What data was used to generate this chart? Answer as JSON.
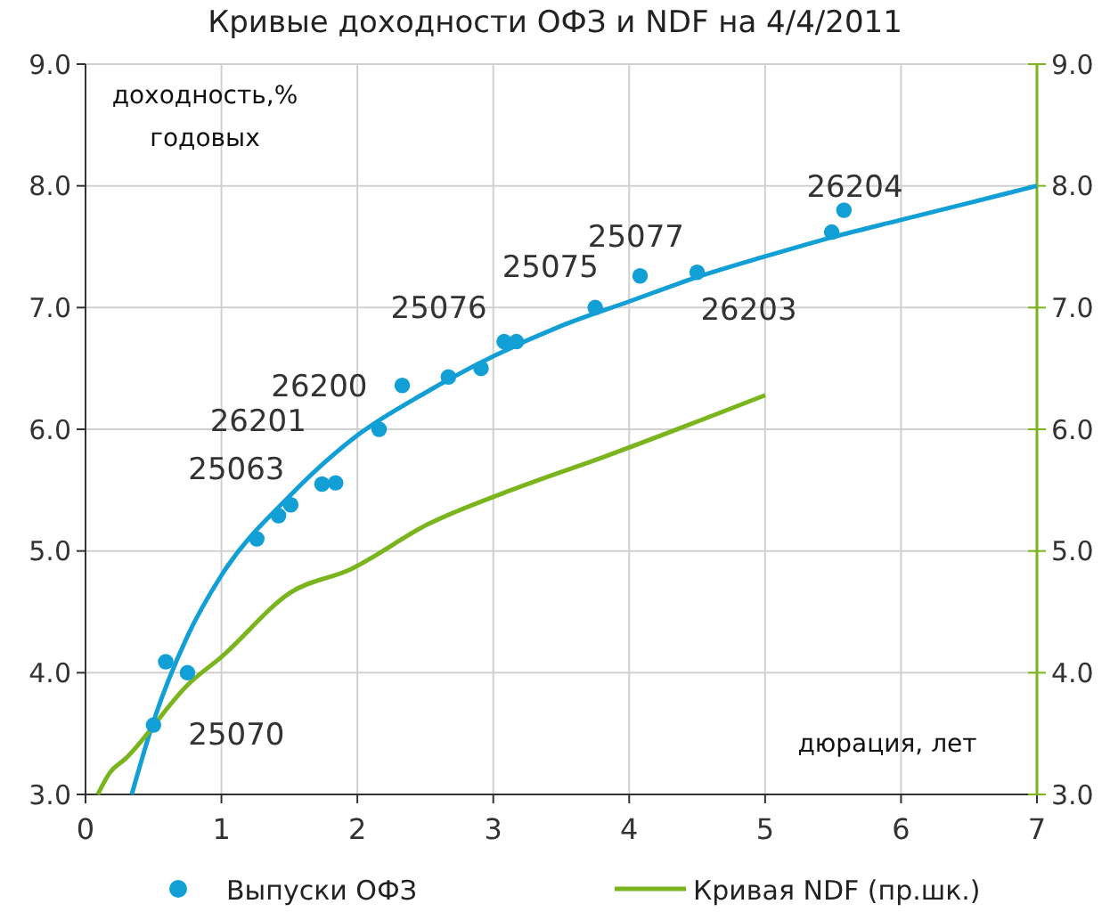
{
  "chart_data": {
    "type": "scatter",
    "title": "Кривые доходности ОФЗ и NDF на 4/4/2011",
    "ylabel": "доходность,% годовых",
    "xlabel": "дюрация, лет",
    "xlim": [
      0,
      7
    ],
    "xticks": [
      0,
      1,
      2,
      3,
      4,
      5,
      6,
      7
    ],
    "ylim": [
      3,
      9
    ],
    "yticks": [
      {
        "value": 3,
        "label": "3.0"
      },
      {
        "value": 4,
        "label": "4.0"
      },
      {
        "value": 5,
        "label": "5.0"
      },
      {
        "value": 6,
        "label": "6.0"
      },
      {
        "value": 7,
        "label": "7.0"
      },
      {
        "value": 8,
        "label": "8.0"
      },
      {
        "value": 9,
        "label": "9.0"
      }
    ],
    "y2lim": [
      3,
      9
    ],
    "y2ticks": [
      {
        "value": 3,
        "label": "3.0"
      },
      {
        "value": 4,
        "label": "4.0"
      },
      {
        "value": 5,
        "label": "5.0"
      },
      {
        "value": 6,
        "label": "6.0"
      },
      {
        "value": 7,
        "label": "7.0"
      },
      {
        "value": 8,
        "label": "8.0"
      },
      {
        "value": 9,
        "label": "9.0"
      }
    ],
    "grid": true,
    "legend": "bottom",
    "series": [
      {
        "name": "Выпуски ОФЗ",
        "marker": "circle",
        "color": "#129fd6",
        "x": [
          0.5,
          0.59,
          0.75,
          1.26,
          1.42,
          1.51,
          1.74,
          1.84,
          2.16,
          2.33,
          2.67,
          2.91,
          3.08,
          3.17,
          3.75,
          4.08,
          4.5,
          5.49,
          5.58
        ],
        "values": [
          3.57,
          4.09,
          4.0,
          5.1,
          5.29,
          5.38,
          5.55,
          5.56,
          6.0,
          6.36,
          6.43,
          6.5,
          6.72,
          6.72,
          7.0,
          7.26,
          7.29,
          7.62,
          7.8
        ]
      },
      {
        "type": "line",
        "color": "#129fd6",
        "x": [
          0.34,
          0.5,
          0.75,
          1,
          1.5,
          2,
          2.5,
          3,
          3.5,
          4,
          4.5,
          5,
          5.5,
          6,
          6.5,
          7
        ],
        "values": [
          3.0,
          3.6,
          4.3,
          4.8,
          5.45,
          5.95,
          6.3,
          6.6,
          6.85,
          7.05,
          7.25,
          7.42,
          7.58,
          7.72,
          7.86,
          8.0
        ]
      },
      {
        "name": "Кривая NDF (пр.шк.)",
        "type": "line",
        "axis": "y2",
        "color": "#7ab51d",
        "x": [
          0.09,
          0.18,
          0.29,
          0.77,
          1.0,
          1.51,
          1.95,
          2.52,
          3.13,
          3.83,
          5.0
        ],
        "values": [
          3.0,
          3.18,
          3.29,
          3.92,
          4.13,
          4.66,
          4.85,
          5.22,
          5.5,
          5.78,
          6.28
        ]
      }
    ],
    "annotations": [
      "25070",
      "25063",
      "26201",
      "26200",
      "25076",
      "25075",
      "25077",
      "26203",
      "26204"
    ]
  }
}
